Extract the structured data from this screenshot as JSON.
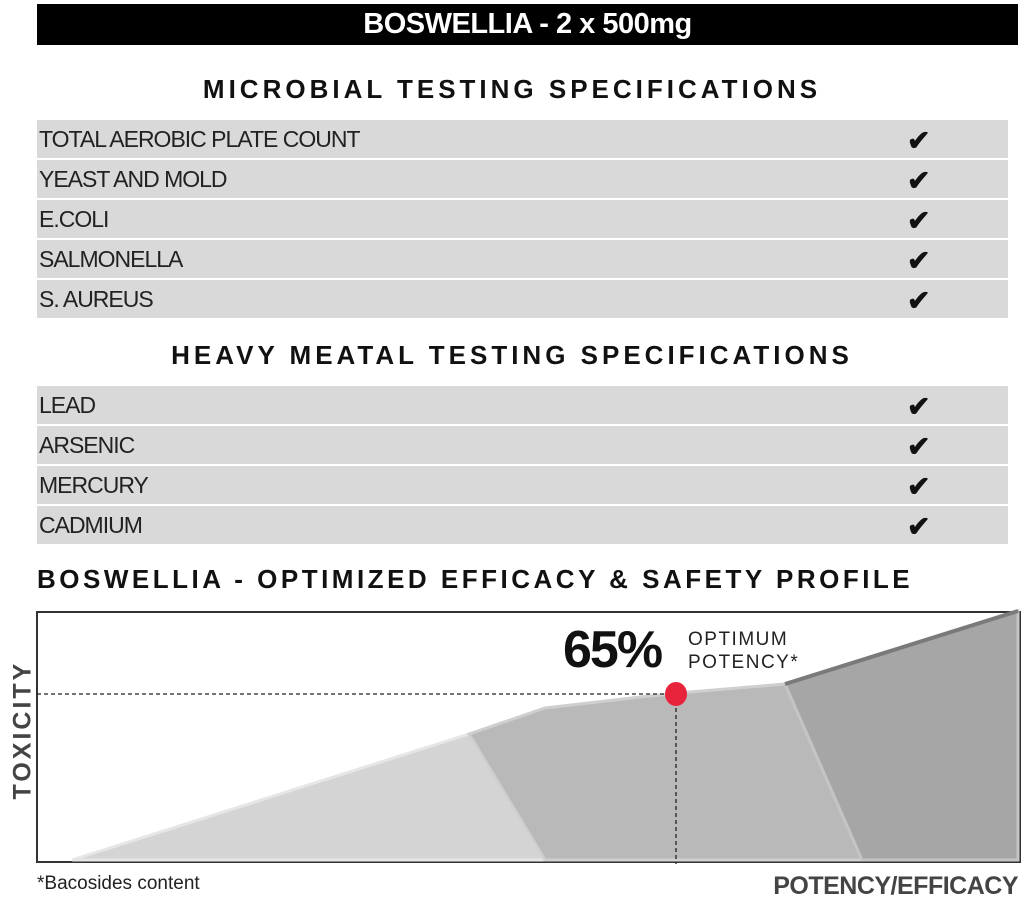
{
  "header": {
    "title": "BOSWELLIA - 2 x 500mg"
  },
  "microbial": {
    "title": "MICROBIAL TESTING SPECIFICATIONS",
    "items": [
      {
        "label": "TOTAL AEROBIC PLATE COUNT",
        "check": "✔"
      },
      {
        "label": "YEAST AND MOLD",
        "check": "✔"
      },
      {
        "label": "E.COLI",
        "check": "✔"
      },
      {
        "label": "SALMONELLA",
        "check": "✔"
      },
      {
        "label": "S. AUREUS",
        "check": "✔"
      }
    ]
  },
  "heavy_metal": {
    "title": "HEAVY MEATAL TESTING SPECIFICATIONS",
    "items": [
      {
        "label": "LEAD",
        "check": "✔"
      },
      {
        "label": "ARSENIC",
        "check": "✔"
      },
      {
        "label": "MERCURY",
        "check": "✔"
      },
      {
        "label": "CADMIUM",
        "check": "✔"
      }
    ]
  },
  "profile": {
    "title": "BOSWELLIA - OPTIMIZED EFFICACY & SAFETY PROFILE",
    "y_label": "TOXICITY",
    "x_label": "POTENCY/EFFICACY",
    "highlight_value": "65%",
    "highlight_line1": "OPTIMUM",
    "highlight_line2": "POTENCY*",
    "footnote": "*Bacosides content",
    "marker_color": "#e8243c"
  }
}
